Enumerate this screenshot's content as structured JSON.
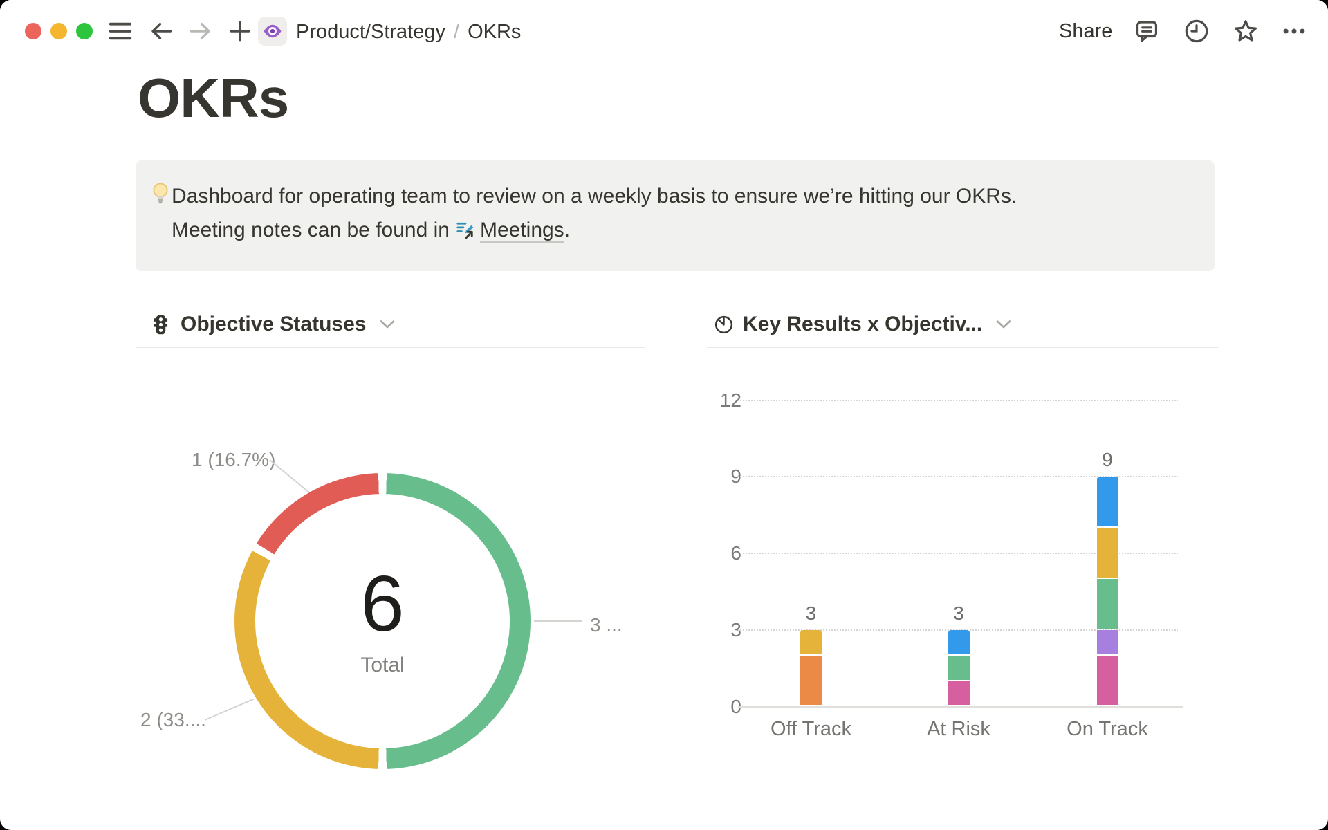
{
  "titlebar": {
    "breadcrumb": {
      "parent": "Product/Strategy",
      "separator": "/",
      "current": "OKRs"
    },
    "share_label": "Share",
    "icons": [
      "sidebar-menu",
      "back",
      "forward",
      "new-page",
      "page-eye",
      "comments",
      "updates-clock",
      "favorite-star",
      "more-ellipsis"
    ]
  },
  "page": {
    "title": "OKRs",
    "callout": {
      "emoji": "lightbulb",
      "text_line1": "Dashboard for operating team to review on a weekly basis to ensure we’re hitting our OKRs.",
      "text_line2_prefix": "Meeting notes can be found in",
      "link_label": "Meetings",
      "text_line2_suffix": "."
    }
  },
  "colors": {
    "status_red": "#E05C55",
    "status_yellow": "#E5B23A",
    "status_green": "#67BE8C",
    "bar_orange": "#EB8A47",
    "bar_blue": "#3399EA",
    "bar_pink": "#D65F9F",
    "bar_purple": "#A77FDE",
    "callout_bg": "#F1F1EF",
    "text": "#37352F"
  },
  "chart_data": [
    {
      "type": "pie",
      "donut": true,
      "title": "Objective Statuses",
      "center_value": "6",
      "center_label": "Total",
      "legend_position": "outside-callout-labels",
      "slices": [
        {
          "label": "1 (16.7%)",
          "value": 1,
          "color": "#E05C55"
        },
        {
          "label": "2 (33....",
          "value": 2,
          "color": "#E5B23A"
        },
        {
          "label": "3 ...",
          "value": 3,
          "color": "#67BE8C"
        }
      ]
    },
    {
      "type": "bar",
      "stacked": true,
      "title": "Key Results x Objectiv...",
      "categories": [
        "Off Track",
        "At Risk",
        "On Track"
      ],
      "totals": [
        3,
        3,
        9
      ],
      "ylim": [
        0,
        12
      ],
      "yticks": [
        0,
        3,
        6,
        9,
        12
      ],
      "grid": "dotted-horizontal",
      "legend_position": "none",
      "stacks": [
        [
          {
            "value": 2,
            "color": "#EB8A47"
          },
          {
            "value": 1,
            "color": "#E5B23A"
          }
        ],
        [
          {
            "value": 1,
            "color": "#D65F9F"
          },
          {
            "value": 1,
            "color": "#67BE8C"
          },
          {
            "value": 1,
            "color": "#3399EA"
          }
        ],
        [
          {
            "value": 2,
            "color": "#D65F9F"
          },
          {
            "value": 1,
            "color": "#A77FDE"
          },
          {
            "value": 2,
            "color": "#67BE8C"
          },
          {
            "value": 2,
            "color": "#E5B23A"
          },
          {
            "value": 2,
            "color": "#3399EA"
          }
        ]
      ]
    }
  ]
}
